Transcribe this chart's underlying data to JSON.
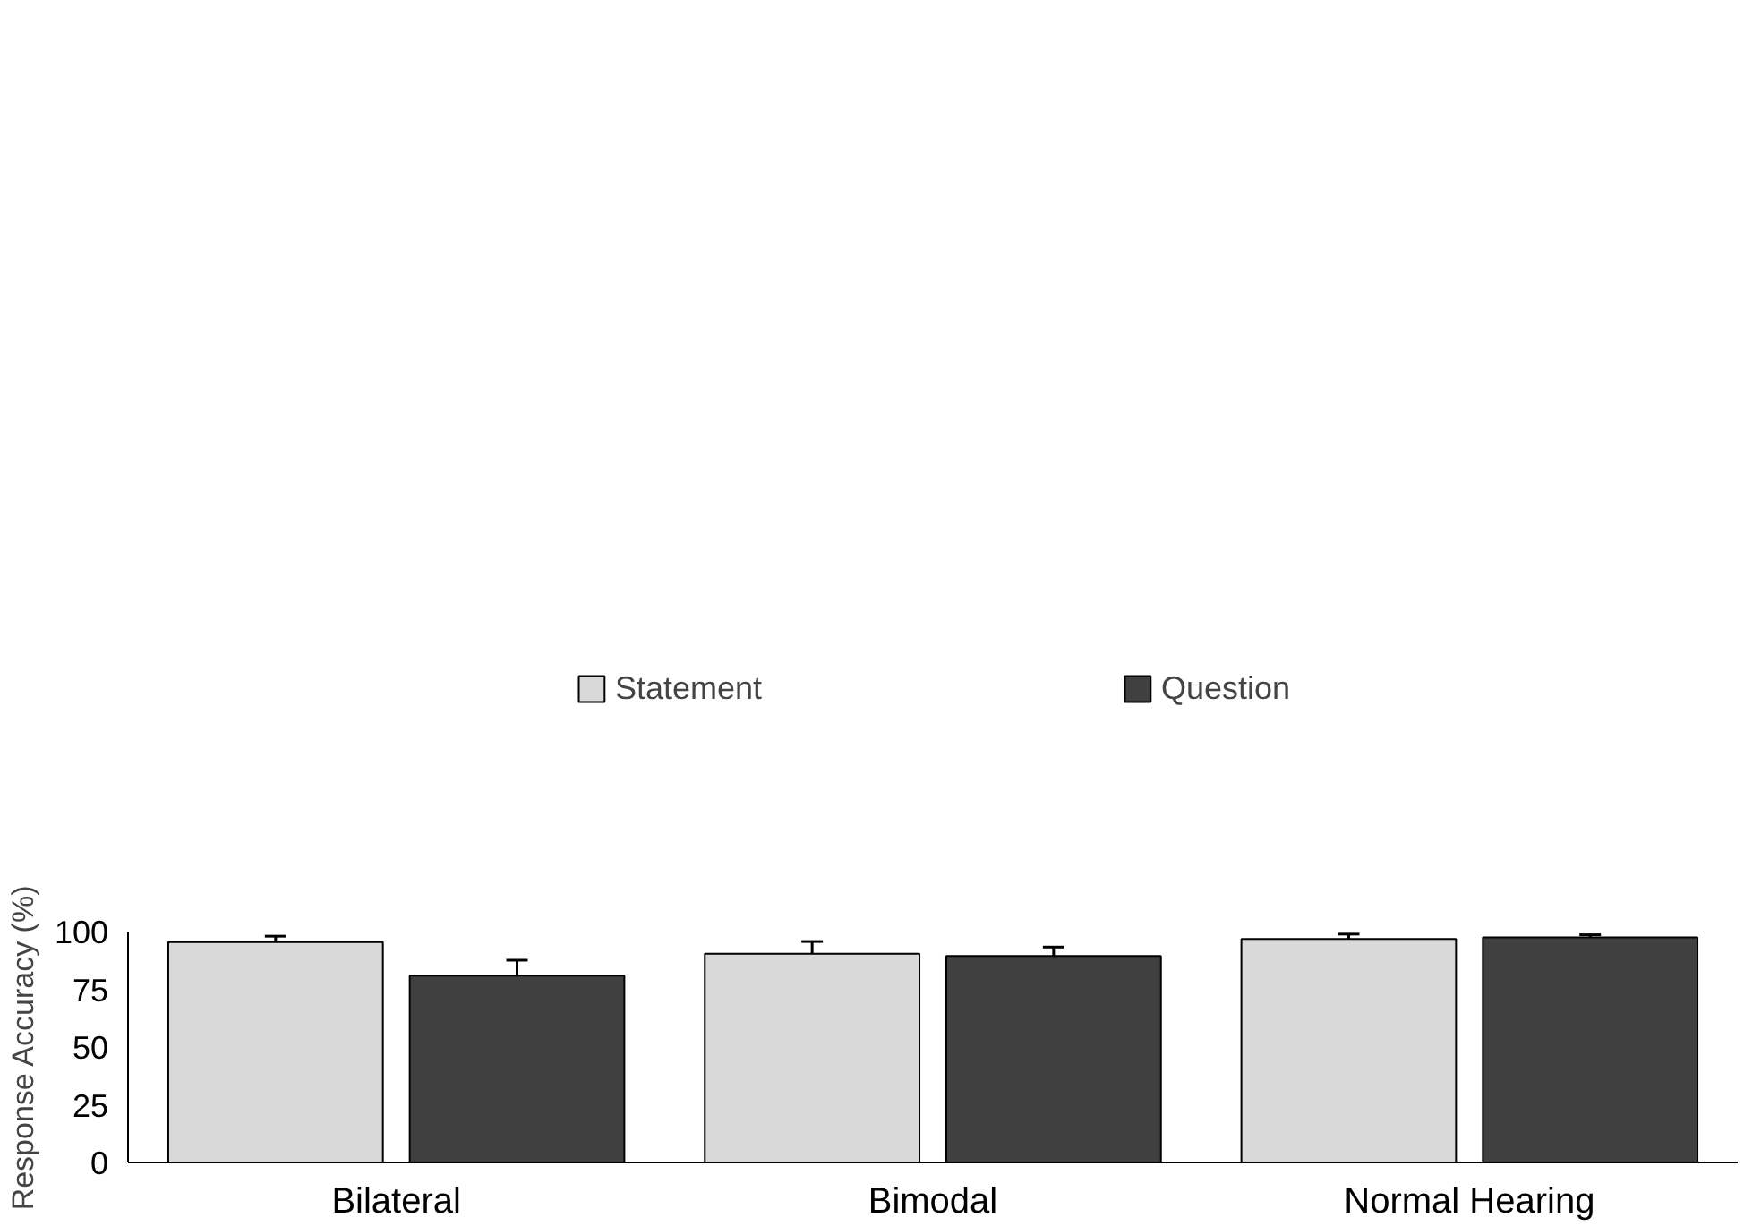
{
  "chart_data": {
    "type": "bar",
    "ylabel": "Response Accuracy (%)",
    "categories": [
      "Bilateral",
      "Bimodal",
      "Normal Hearing"
    ],
    "series": [
      {
        "name": "Statement",
        "color": "#d9d9d9",
        "values": [
          95.4,
          90.4,
          96.8
        ],
        "errors": [
          [
            95.4,
            98.0
          ],
          [
            90.4,
            95.7
          ],
          [
            96.8,
            98.9
          ]
        ]
      },
      {
        "name": "Question",
        "color": "#404040",
        "values": [
          80.9,
          89.4,
          97.5
        ],
        "errors": [
          [
            80.9,
            87.6
          ],
          [
            89.4,
            93.3
          ],
          [
            97.5,
            98.6
          ]
        ]
      }
    ],
    "ylim": [
      0,
      100
    ],
    "yticks": [
      0,
      25,
      50,
      75,
      100
    ],
    "grid": false,
    "legend": "top"
  }
}
